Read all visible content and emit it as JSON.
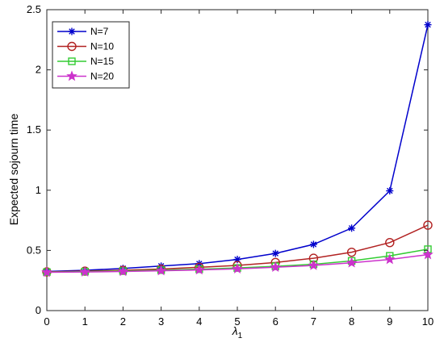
{
  "chart_data": {
    "type": "line",
    "title": "",
    "xlabel": "λ",
    "xlabel_subscript": "1",
    "ylabel": "Expected sojourn time",
    "x": [
      0,
      1,
      2,
      3,
      4,
      5,
      6,
      7,
      8,
      9,
      10
    ],
    "xlim": [
      0,
      10
    ],
    "ylim": [
      0,
      2.5
    ],
    "xticks": [
      "0",
      "1",
      "2",
      "3",
      "4",
      "5",
      "6",
      "7",
      "8",
      "9",
      "10"
    ],
    "yticks": [
      "0",
      "0.5",
      "1",
      "1.5",
      "2",
      "2.5"
    ],
    "grid": false,
    "legend_position": "top-left",
    "series": [
      {
        "name": "N=7",
        "color": "#0000cc",
        "marker": "asterisk",
        "values": [
          0.325,
          0.335,
          0.35,
          0.37,
          0.39,
          0.425,
          0.475,
          0.55,
          0.685,
          0.995,
          2.375
        ]
      },
      {
        "name": "N=10",
        "color": "#b22222",
        "marker": "circle",
        "values": [
          0.322,
          0.328,
          0.335,
          0.345,
          0.36,
          0.375,
          0.4,
          0.435,
          0.485,
          0.565,
          0.71
        ]
      },
      {
        "name": "N=15",
        "color": "#33cc33",
        "marker": "square",
        "values": [
          0.32,
          0.324,
          0.329,
          0.336,
          0.344,
          0.354,
          0.368,
          0.385,
          0.413,
          0.455,
          0.51
        ]
      },
      {
        "name": "N=20",
        "color": "#cc33cc",
        "marker": "star",
        "values": [
          0.318,
          0.321,
          0.325,
          0.331,
          0.338,
          0.347,
          0.36,
          0.375,
          0.397,
          0.425,
          0.465
        ]
      }
    ]
  }
}
